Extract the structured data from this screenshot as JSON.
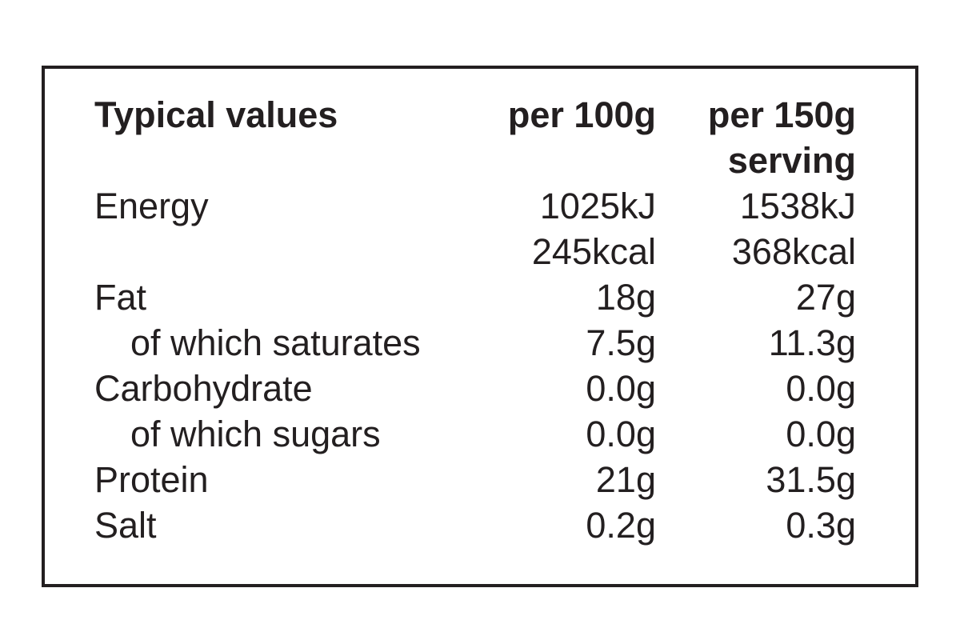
{
  "nutrition_label": {
    "colors": {
      "background": "#ffffff",
      "border": "#231f20",
      "text": "#231f20"
    },
    "header": {
      "label": "Typical values",
      "per_100": "per 100g",
      "per_serving_line1": "per 150g",
      "per_serving_line2": "serving"
    },
    "rows": [
      {
        "label": "Energy",
        "indent": false,
        "per_100": "1025kJ",
        "per_serving": "1538kJ"
      },
      {
        "label": "",
        "indent": false,
        "per_100": "245kcal",
        "per_serving": "368kcal"
      },
      {
        "label": "Fat",
        "indent": false,
        "per_100": "18g",
        "per_serving": "27g"
      },
      {
        "label": "of which saturates",
        "indent": true,
        "per_100": "7.5g",
        "per_serving": "11.3g"
      },
      {
        "label": "Carbohydrate",
        "indent": false,
        "per_100": "0.0g",
        "per_serving": "0.0g"
      },
      {
        "label": "of which sugars",
        "indent": true,
        "per_100": "0.0g",
        "per_serving": "0.0g"
      },
      {
        "label": "Protein",
        "indent": false,
        "per_100": "21g",
        "per_serving": "31.5g"
      },
      {
        "label": "Salt",
        "indent": false,
        "per_100": "0.2g",
        "per_serving": "0.3g"
      }
    ]
  }
}
